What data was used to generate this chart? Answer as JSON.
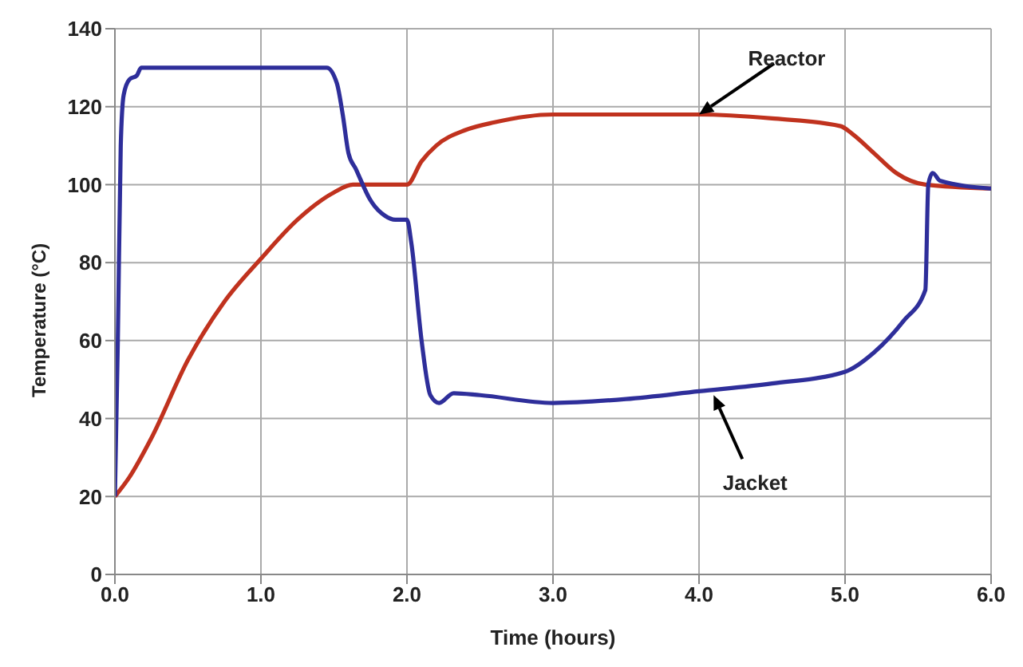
{
  "chart_data": {
    "type": "line",
    "xlabel": "Time (hours)",
    "ylabel": "Temperature (°C)",
    "xlim": [
      0,
      6
    ],
    "xticks": [
      {
        "value": 0,
        "label": "0.0"
      },
      {
        "value": 1,
        "label": "1.0"
      },
      {
        "value": 2,
        "label": "2.0"
      },
      {
        "value": 3,
        "label": "3.0"
      },
      {
        "value": 4,
        "label": "4.0"
      },
      {
        "value": 5,
        "label": "5.0"
      },
      {
        "value": 6,
        "label": "6.0"
      }
    ],
    "ylim": [
      0,
      140
    ],
    "yticks": [
      0,
      20,
      40,
      60,
      80,
      100,
      120,
      140
    ],
    "grid": true,
    "legend": false,
    "marker": "none",
    "line_style": "solid",
    "series": [
      {
        "color": "#c0321e",
        "x": [
          0,
          0.1,
          0.25,
          0.5,
          0.75,
          1.0,
          1.25,
          1.5,
          1.63,
          2.0,
          2.1,
          2.2,
          2.4,
          2.6,
          3.0,
          3.5,
          4.0,
          4.5,
          4.97,
          5.05,
          5.2,
          5.35,
          5.55,
          6.0
        ],
        "values": [
          20,
          25,
          35,
          55,
          70,
          81,
          91,
          98,
          100,
          100,
          106,
          110,
          114,
          116,
          118,
          118,
          118,
          117,
          115,
          113,
          108,
          103,
          100,
          99
        ]
      },
      {
        "color": "#2e2e9a",
        "x": [
          0,
          0.02,
          0.04,
          0.06,
          0.1,
          0.15,
          0.18,
          1.45,
          1.52,
          1.56,
          1.6,
          1.65,
          1.75,
          1.85,
          1.92,
          2.0,
          2.03,
          2.1,
          2.16,
          2.22,
          2.32,
          2.5,
          3.0,
          3.5,
          4.0,
          4.5,
          5.0,
          5.2,
          5.4,
          5.55,
          5.57,
          5.6,
          5.65,
          6.0
        ],
        "values": [
          20,
          60,
          110,
          123,
          127,
          128,
          130,
          130,
          126,
          118,
          108,
          104,
          96,
          92,
          91,
          91,
          85,
          60,
          46,
          44,
          46.5,
          46,
          44,
          45,
          47,
          49,
          52,
          57,
          65,
          73,
          100,
          103,
          101,
          99
        ]
      }
    ],
    "annotations": [
      {
        "text": "Reactor",
        "x": 4.0,
        "y": 118
      },
      {
        "text": "Jacket",
        "x": 4.1,
        "y": 46
      }
    ]
  }
}
